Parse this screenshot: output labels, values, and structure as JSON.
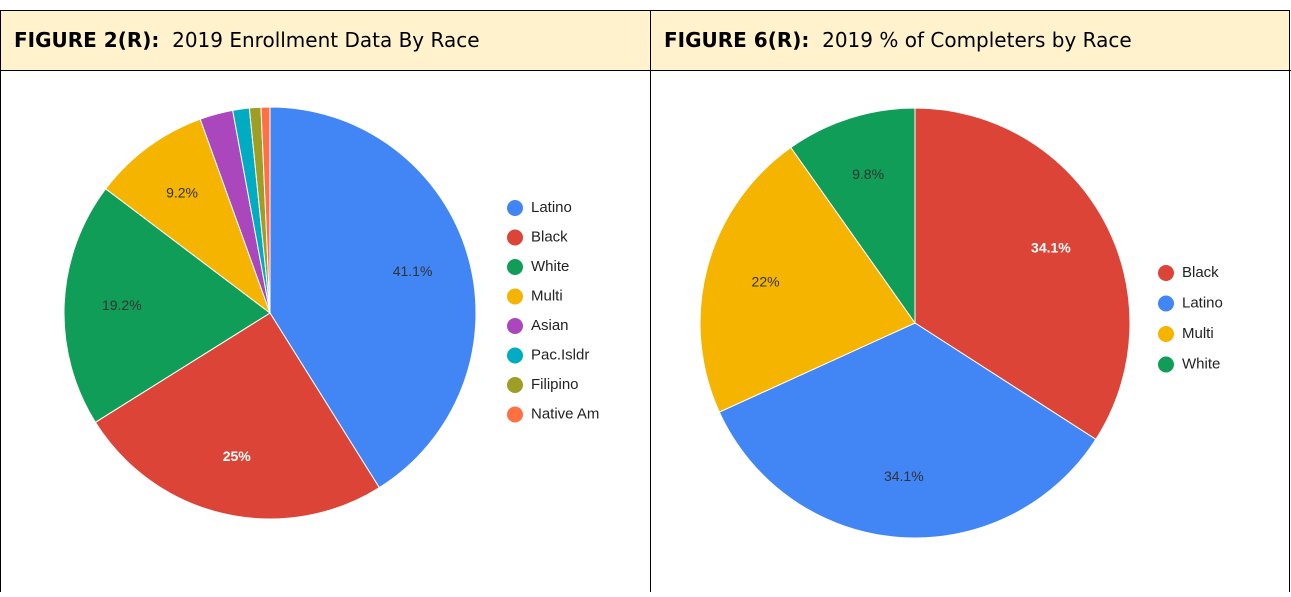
{
  "chart_data": [
    {
      "type": "pie",
      "figure": "FIGURE 2(R):",
      "title": "2019 Enrollment Data By Race",
      "categories": [
        "Latino",
        "Black",
        "White",
        "Multi",
        "Asian",
        "Pac.Isldr",
        "Filipino",
        "Native Am"
      ],
      "values": [
        41.1,
        25,
        19.2,
        9.2,
        2.6,
        1.3,
        0.9,
        0.7
      ],
      "value_labels": [
        "41.1%",
        "25%",
        "19.2%",
        "9.2%",
        null,
        null,
        null,
        null
      ],
      "value_label_colors": [
        "#333333",
        "#ffffff",
        "#333333",
        "#333333",
        null,
        null,
        null,
        null
      ],
      "colors": [
        "#4285f4",
        "#db4437",
        "#0f9d58",
        "#f4b400",
        "#ab47bc",
        "#00acc1",
        "#9e9d24",
        "#ff7043"
      ]
    },
    {
      "type": "pie",
      "figure": "FIGURE 6(R):",
      "title": "2019 % of Completers by Race",
      "categories": [
        "Black",
        "Latino",
        "Multi",
        "White"
      ],
      "values": [
        34.1,
        34.1,
        22,
        9.8
      ],
      "value_labels": [
        "34.1%",
        "34.1%",
        "22%",
        "9.8%"
      ],
      "value_label_colors": [
        "#ffffff",
        "#333333",
        "#333333",
        "#333333"
      ],
      "colors": [
        "#db4437",
        "#4285f4",
        "#f4b400",
        "#0f9d58"
      ]
    }
  ]
}
